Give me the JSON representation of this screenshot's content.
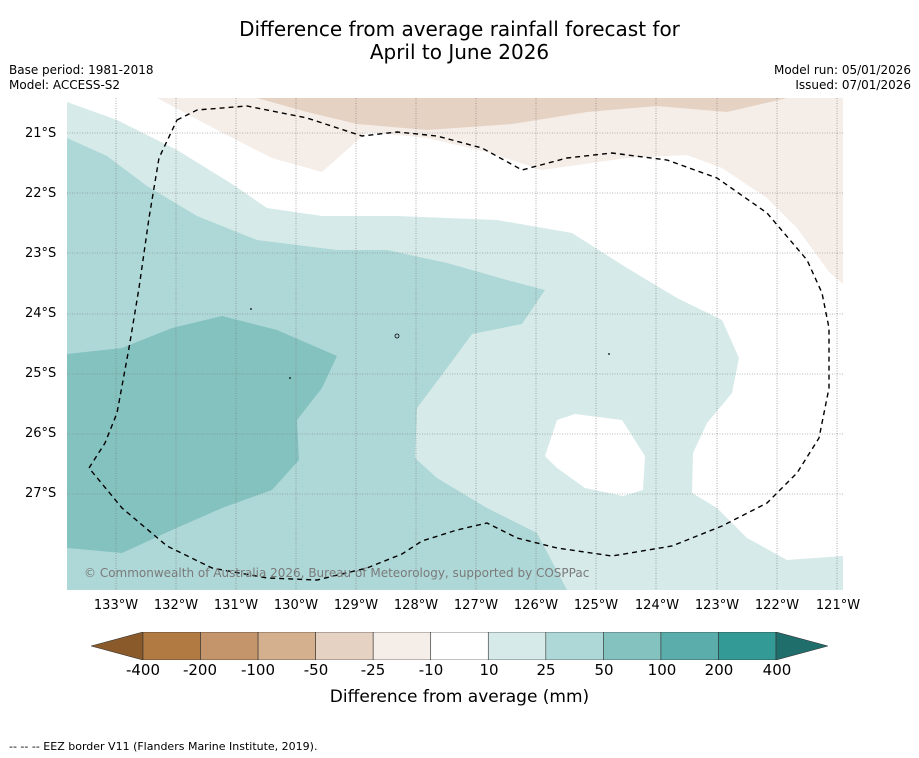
{
  "title": {
    "line1": "Difference from average rainfall forecast for",
    "line2": "April to June 2026"
  },
  "meta": {
    "base_period": "Base period: 1981-2018",
    "model": "Model: ACCESS-S2",
    "model_run": "Model run: 05/01/2026",
    "issued": "Issued: 07/01/2026"
  },
  "map": {
    "latitude_labels": [
      "21°S",
      "22°S",
      "23°S",
      "24°S",
      "25°S",
      "26°S",
      "27°S"
    ],
    "longitude_labels": [
      "133°W",
      "132°W",
      "131°W",
      "130°W",
      "129°W",
      "128°W",
      "127°W",
      "126°W",
      "125°W",
      "124°W",
      "123°W",
      "122°W",
      "121°W"
    ],
    "copyright": "© Commonwealth of Australia 2026, Bureau of Meteorology, supported by COSPPac",
    "eez_border": "EEZ border V11",
    "colors": {
      "dry_10_25": "#f5ede8",
      "dry_25_50": "#e6d2c3",
      "neutral": "#ffffff",
      "wet_10_25": "#d5eae9",
      "wet_25_50": "#aed8d7",
      "wet_50_100": "#84c2c0"
    }
  },
  "colorbar": {
    "labels": [
      "-400",
      "-200",
      "-100",
      "-50",
      "-25",
      "-10",
      "10",
      "25",
      "50",
      "100",
      "200",
      "400"
    ],
    "colors": [
      "#8a5a2b",
      "#b07a42",
      "#c4956a",
      "#d4b08f",
      "#e6d2c3",
      "#f5ede8",
      "#ffffff",
      "#d5eae9",
      "#aed8d7",
      "#84c2c0",
      "#5aadab",
      "#339a96",
      "#1f6e6b"
    ],
    "title": "Difference from average (mm)"
  },
  "footnote": "--  --  -- EEZ border V11 (Flanders Marine Institute, 2019)."
}
